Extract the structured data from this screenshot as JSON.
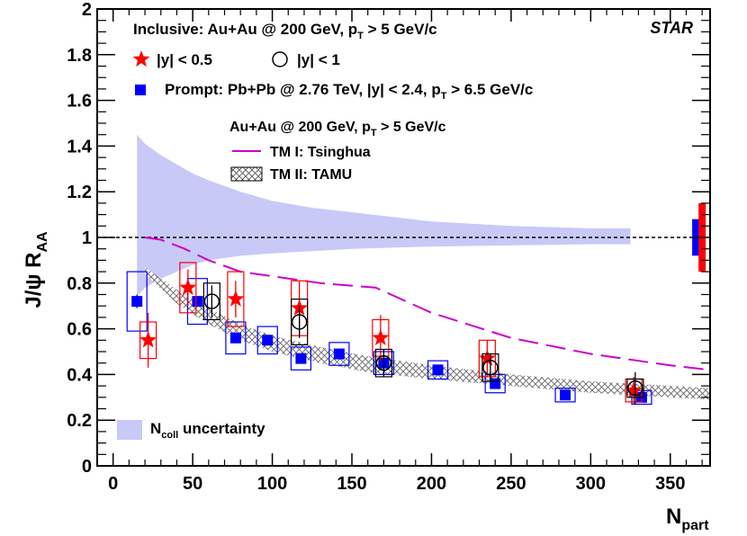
{
  "chart_data": {
    "type": "scatter",
    "x_axis": {
      "label_main": "N",
      "label_sub": "part",
      "range": [
        -10,
        375
      ],
      "major_ticks": [
        0,
        50,
        100,
        150,
        200,
        250,
        300,
        350
      ],
      "tick_labels": [
        "0",
        "50",
        "100",
        "150",
        "200",
        "250",
        "300",
        "350"
      ]
    },
    "y_axis": {
      "label_main": "J/ψ R",
      "label_sub": "AA",
      "range": [
        0,
        2
      ],
      "major_ticks": [
        0,
        0.2,
        0.4,
        0.6,
        0.8,
        1,
        1.2,
        1.4,
        1.6,
        1.8,
        2
      ],
      "tick_labels": [
        "0",
        "0.2",
        "0.4",
        "0.6",
        "0.8",
        "1",
        "1.2",
        "1.4",
        "1.6",
        "1.8",
        "2"
      ]
    },
    "experiment_label": "STAR",
    "header_text": {
      "main": "Inclusive: Au+Au @ 200 GeV, p",
      "sub": "T",
      "tail": " > 5 GeV/c"
    },
    "model_header": {
      "main": "Au+Au @ 200 GeV, p",
      "sub": "T",
      "tail": " > 5 GeV/c"
    },
    "legend_entries": {
      "star_y05": "|y| < 0.5",
      "star_y1": "|y| < 1",
      "cms": {
        "main": "Prompt: Pb+Pb @ 2.76 TeV, |y| < 2.4, p",
        "sub": "T",
        "tail": " > 6.5 GeV/c"
      },
      "tm1": "TM I: Tsinghua",
      "tm2": "TM II: TAMU",
      "ncoll": {
        "main": "N",
        "sub": "coll",
        "tail": " uncertainty"
      }
    },
    "colors": {
      "star_red": "#ff0000",
      "cms_blue": "#0000ff",
      "band_blue": "#c9c9f7",
      "tm1_magenta": "#cc00cc",
      "tm2_gray": "#7a7a7a",
      "open_black": "#000000"
    },
    "reference_line_y": 1.0,
    "ncoll_band": {
      "x": [
        15,
        20,
        30,
        40,
        50,
        60,
        80,
        100,
        125,
        150,
        175,
        200,
        250,
        300,
        325
      ],
      "upper": [
        1.45,
        1.41,
        1.36,
        1.32,
        1.28,
        1.25,
        1.2,
        1.16,
        1.13,
        1.11,
        1.09,
        1.07,
        1.05,
        1.04,
        1.04
      ],
      "lower": [
        0.74,
        0.78,
        0.82,
        0.85,
        0.88,
        0.9,
        0.92,
        0.93,
        0.94,
        0.95,
        0.955,
        0.96,
        0.965,
        0.97,
        0.97
      ]
    },
    "global_uncertainty_boxes": [
      {
        "name": "cms-global",
        "x": 366,
        "low": 0.92,
        "high": 1.08,
        "color": "#0000ff"
      },
      {
        "name": "star-global",
        "x": 370,
        "low": 0.85,
        "high": 1.15,
        "color": "#ff0000"
      }
    ],
    "series": [
      {
        "name": "STAR |y| < 0.5",
        "marker": "filled-star",
        "color": "#ff0000",
        "x": [
          22,
          47,
          77,
          117,
          168,
          235,
          327
        ],
        "y": [
          0.55,
          0.78,
          0.73,
          0.69,
          0.56,
          0.47,
          0.33
        ],
        "stat_err": [
          0.12,
          0.08,
          0.08,
          0.12,
          0.1,
          0.08,
          0.06
        ],
        "sys_err": [
          0.08,
          0.11,
          0.12,
          0.12,
          0.08,
          0.08,
          0.05
        ]
      },
      {
        "name": "STAR |y| < 1",
        "marker": "open-circle",
        "color": "#000000",
        "x": [
          62,
          117,
          170,
          237,
          328
        ],
        "y": [
          0.72,
          0.63,
          0.45,
          0.43,
          0.34
        ],
        "stat_err": [
          0.07,
          0.07,
          0.06,
          0.06,
          0.07
        ],
        "sys_err": [
          0.08,
          0.1,
          0.06,
          0.06,
          0.04
        ]
      },
      {
        "name": "CMS Prompt Pb+Pb 2.76 TeV",
        "marker": "filled-square",
        "color": "#0000ff",
        "x": [
          15,
          53,
          77,
          97,
          118,
          142,
          170,
          204,
          240,
          284,
          332
        ],
        "y": [
          0.72,
          0.72,
          0.56,
          0.55,
          0.47,
          0.49,
          0.45,
          0.42,
          0.36,
          0.31,
          0.3
        ],
        "stat_err": [
          0.03,
          0.02,
          0.02,
          0.02,
          0.02,
          0.02,
          0.02,
          0.02,
          0.02,
          0.02,
          0.02
        ],
        "sys_err": [
          0.13,
          0.1,
          0.07,
          0.06,
          0.05,
          0.05,
          0.05,
          0.04,
          0.04,
          0.03,
          0.03
        ]
      }
    ],
    "models": {
      "tm1_tsinghua": {
        "style": "long-dash",
        "x": [
          20,
          30,
          45,
          60,
          80,
          100,
          130,
          165,
          200,
          250,
          300,
          350,
          375
        ],
        "y": [
          1.0,
          0.99,
          0.95,
          0.9,
          0.85,
          0.83,
          0.8,
          0.78,
          0.67,
          0.56,
          0.49,
          0.44,
          0.42
        ]
      },
      "tm2_tamu": {
        "style": "cross-hatch band",
        "x": [
          20,
          40,
          60,
          80,
          100,
          130,
          160,
          200,
          250,
          300,
          350,
          375
        ],
        "upper": [
          0.87,
          0.77,
          0.69,
          0.62,
          0.57,
          0.52,
          0.48,
          0.44,
          0.4,
          0.37,
          0.35,
          0.34
        ],
        "lower": [
          0.84,
          0.71,
          0.62,
          0.55,
          0.5,
          0.45,
          0.41,
          0.38,
          0.35,
          0.32,
          0.3,
          0.29
        ]
      }
    }
  }
}
